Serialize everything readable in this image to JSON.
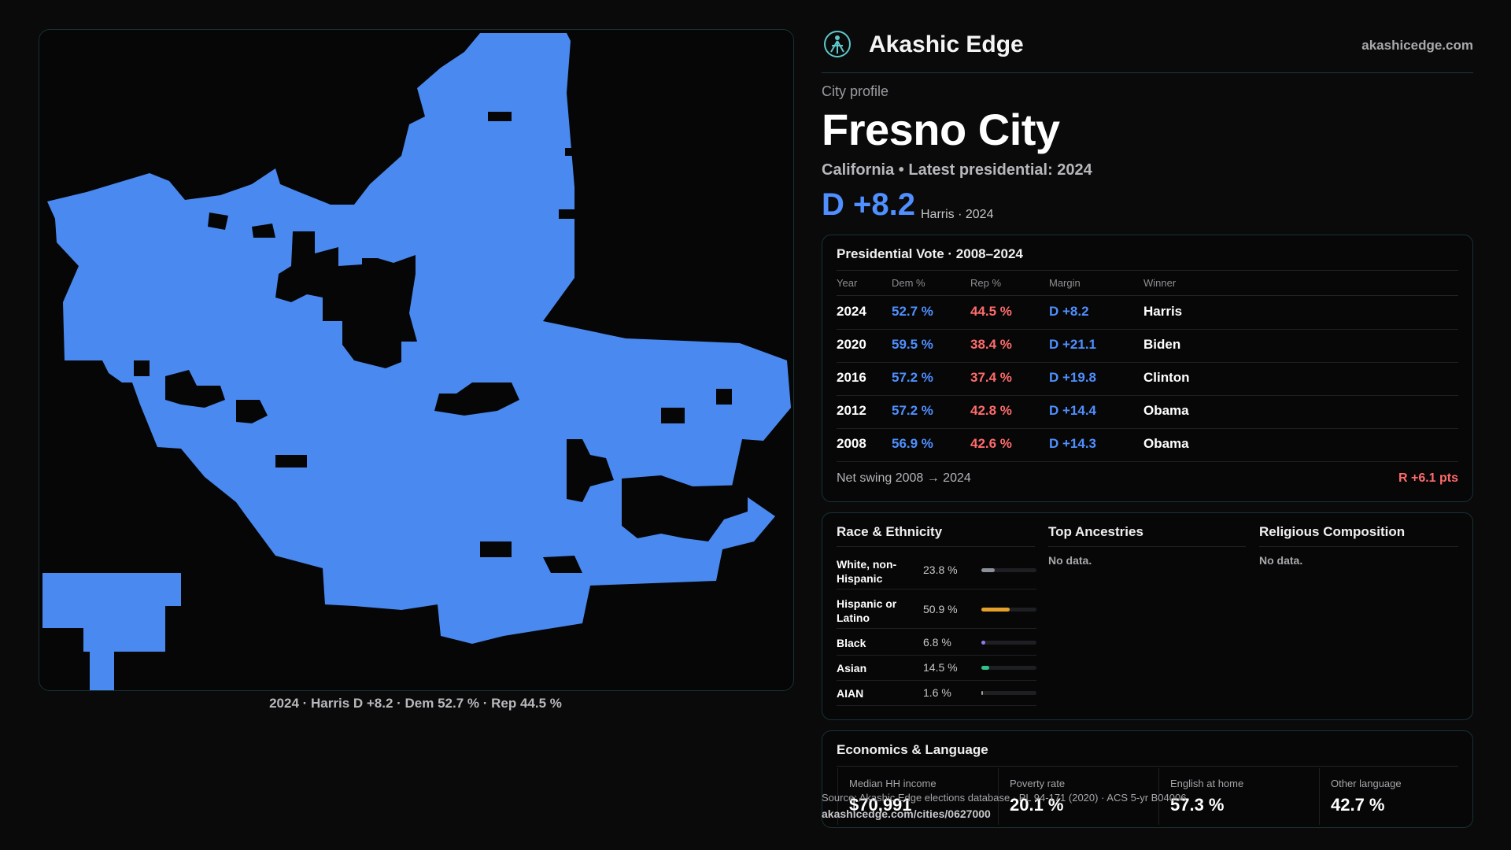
{
  "brand": {
    "name": "Akashic Edge",
    "url": "akashicedge.com",
    "logo_icon": "compass-figure-icon"
  },
  "map": {
    "caption": "2024 · Harris D +8.2 · Dem 52.7 % · Rep 44.5 %",
    "fill_color": "#4a8af0"
  },
  "profile": {
    "eyebrow": "City profile",
    "city": "Fresno City",
    "subtitle": "California • Latest presidential: 2024",
    "margin": "D +8.2",
    "margin_note": "Harris · 2024"
  },
  "presidential": {
    "title": "Presidential Vote · 2008–2024",
    "headers": {
      "year": "Year",
      "dem": "Dem %",
      "rep": "Rep %",
      "margin": "Margin",
      "winner": "Winner"
    },
    "rows": [
      {
        "year": "2024",
        "dem": "52.7 %",
        "rep": "44.5 %",
        "margin": "D +8.2",
        "winner": "Harris"
      },
      {
        "year": "2020",
        "dem": "59.5 %",
        "rep": "38.4 %",
        "margin": "D +21.1",
        "winner": "Biden"
      },
      {
        "year": "2016",
        "dem": "57.2 %",
        "rep": "37.4 %",
        "margin": "D +19.8",
        "winner": "Clinton"
      },
      {
        "year": "2012",
        "dem": "57.2 %",
        "rep": "42.8 %",
        "margin": "D +14.4",
        "winner": "Obama"
      },
      {
        "year": "2008",
        "dem": "56.9 %",
        "rep": "42.6 %",
        "margin": "D +14.3",
        "winner": "Obama"
      }
    ],
    "swing_label": "Net swing 2008 → 2024",
    "swing_value": "R +6.1 pts"
  },
  "demographics": {
    "race_title": "Race & Ethnicity",
    "race": [
      {
        "label": "White, non-Hispanic",
        "pct": "23.8 %",
        "share": 0.238,
        "color": "#8a8f98"
      },
      {
        "label": "Hispanic or Latino",
        "pct": "50.9 %",
        "share": 0.509,
        "color": "#e3a02a"
      },
      {
        "label": "Black",
        "pct": "6.8 %",
        "share": 0.068,
        "color": "#8c7cf0"
      },
      {
        "label": "Asian",
        "pct": "14.5 %",
        "share": 0.145,
        "color": "#2fc28a"
      },
      {
        "label": "AIAN",
        "pct": "1.6 %",
        "share": 0.016,
        "color": "#a0a0a0"
      }
    ],
    "ancestries_title": "Top Ancestries",
    "ancestries_empty": "No data.",
    "religion_title": "Religious Composition",
    "religion_empty": "No data."
  },
  "economics": {
    "title": "Economics & Language",
    "items": [
      {
        "label": "Median HH income",
        "value": "$70,991"
      },
      {
        "label": "Poverty rate",
        "value": "20.1 %"
      },
      {
        "label": "English at home",
        "value": "57.3 %"
      },
      {
        "label": "Other language",
        "value": "42.7 %"
      }
    ]
  },
  "footer": {
    "source": "Source: Akashic Edge elections database · PL 94-171 (2020) · ACS 5-yr B04006",
    "url": "akashicedge.com/cities/0627000"
  }
}
